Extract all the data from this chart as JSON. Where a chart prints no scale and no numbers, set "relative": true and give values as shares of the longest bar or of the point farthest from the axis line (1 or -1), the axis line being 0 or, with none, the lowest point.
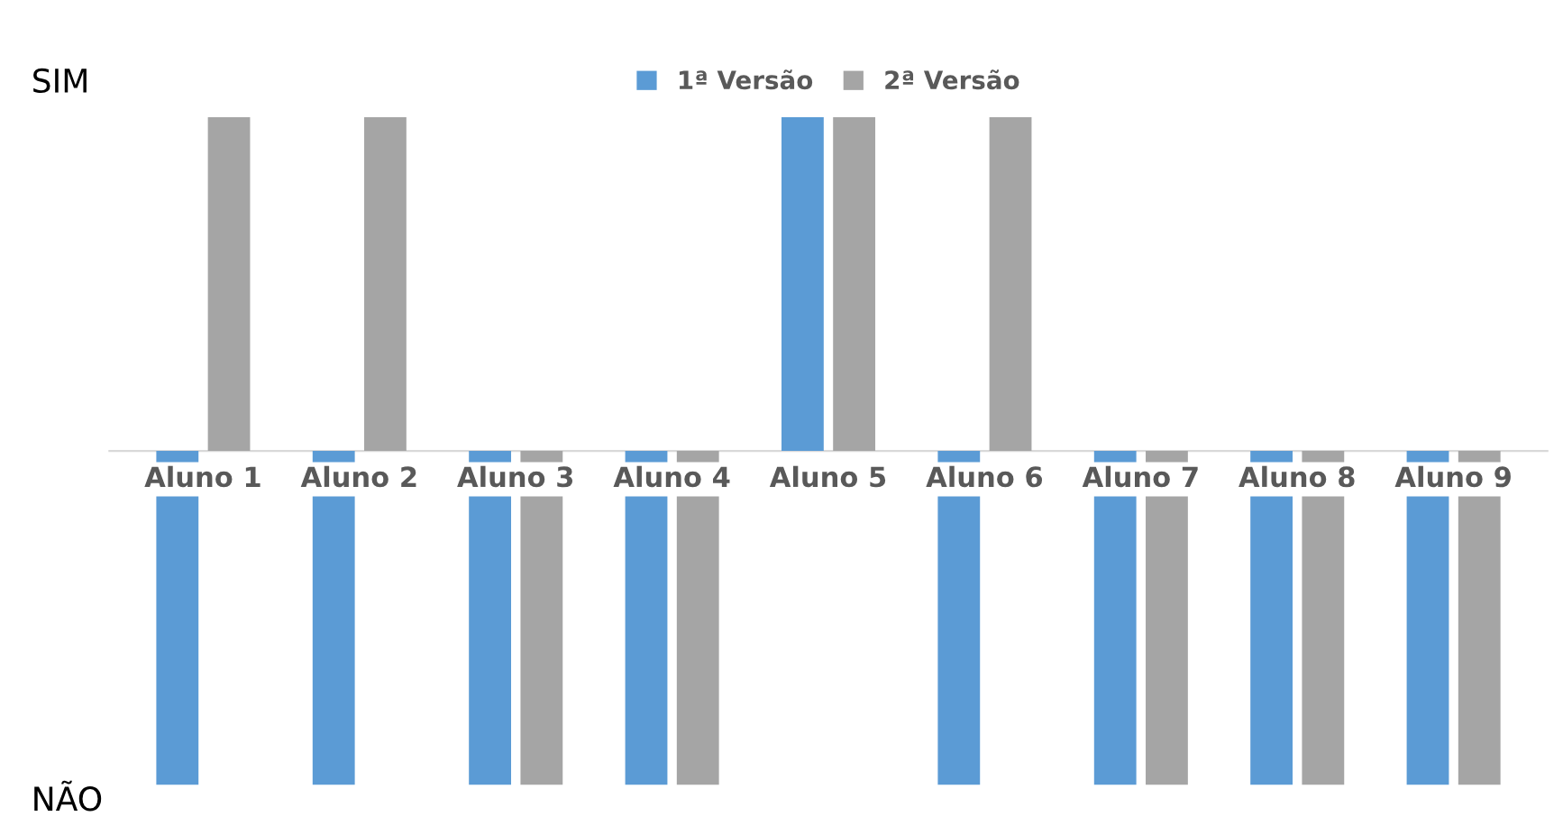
{
  "chart_data": {
    "type": "bar",
    "categories": [
      "Aluno 1",
      "Aluno 2",
      "Aluno 3",
      "Aluno 4",
      "Aluno 5",
      "Aluno 6",
      "Aluno 7",
      "Aluno 8",
      "Aluno 9"
    ],
    "series": [
      {
        "name": "1ª Versão",
        "color": "#5b9bd5",
        "values": [
          -1,
          -1,
          -1,
          -1,
          1,
          -1,
          -1,
          -1,
          -1
        ]
      },
      {
        "name": "2ª Versão",
        "color": "#a5a5a5",
        "values": [
          1,
          1,
          -1,
          -1,
          1,
          1,
          -1,
          -1,
          -1
        ]
      }
    ],
    "relative": true,
    "annotations": [
      "SIM",
      "NÃO"
    ],
    "grid": false,
    "legend": "top"
  }
}
